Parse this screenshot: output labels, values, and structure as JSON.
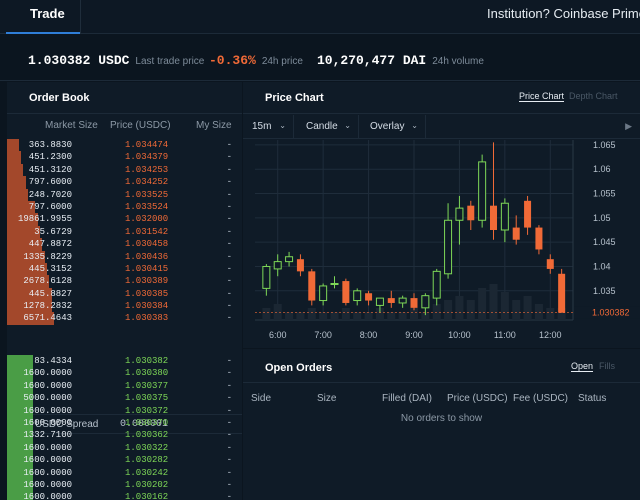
{
  "nav": {
    "tab_trade": "Trade",
    "institution": "Institution? Coinbase Prime"
  },
  "ticker": {
    "last_price": "1.030382 USDC",
    "last_price_label": "Last trade price",
    "change": "-0.36%",
    "change_label": "24h price",
    "volume": "10,270,477 DAI",
    "volume_label": "24h volume"
  },
  "order_book": {
    "title": "Order Book",
    "col_market_size": "Market Size",
    "col_price": "Price (USDC)",
    "col_my_size": "My Size",
    "asks": [
      {
        "size": "363.8830",
        "price": "1.034474",
        "my": "-",
        "depth": 0.05
      },
      {
        "size": "451.2300",
        "price": "1.034379",
        "my": "-",
        "depth": 0.06
      },
      {
        "size": "451.3120",
        "price": "1.034253",
        "my": "-",
        "depth": 0.07
      },
      {
        "size": "797.6000",
        "price": "1.034252",
        "my": "-",
        "depth": 0.08
      },
      {
        "size": "248.7020",
        "price": "1.033525",
        "my": "-",
        "depth": 0.09
      },
      {
        "size": "797.6000",
        "price": "1.033524",
        "my": "-",
        "depth": 0.12
      },
      {
        "size": "19861.9955",
        "price": "1.032000",
        "my": "-",
        "depth": 0.13
      },
      {
        "size": "35.6729",
        "price": "1.031542",
        "my": "-",
        "depth": 0.14
      },
      {
        "size": "447.8872",
        "price": "1.030458",
        "my": "-",
        "depth": 0.15
      },
      {
        "size": "1335.8229",
        "price": "1.030436",
        "my": "-",
        "depth": 0.16
      },
      {
        "size": "445.3152",
        "price": "1.030415",
        "my": "-",
        "depth": 0.17
      },
      {
        "size": "2678.6128",
        "price": "1.030389",
        "my": "-",
        "depth": 0.18
      },
      {
        "size": "445.8827",
        "price": "1.030385",
        "my": "-",
        "depth": 0.19
      },
      {
        "size": "1278.2832",
        "price": "1.030384",
        "my": "-",
        "depth": 0.19
      },
      {
        "size": "6571.4643",
        "price": "1.030383",
        "my": "-",
        "depth": 0.2
      }
    ],
    "spread_label": "USDC Spread",
    "spread_value": "0.000001",
    "bids": [
      {
        "size": "83.4334",
        "price": "1.030382",
        "my": "-",
        "depth": 0.11
      },
      {
        "size": "1600.0000",
        "price": "1.030380",
        "my": "-",
        "depth": 0.11
      },
      {
        "size": "1600.0000",
        "price": "1.030377",
        "my": "-",
        "depth": 0.11
      },
      {
        "size": "5000.0000",
        "price": "1.030375",
        "my": "-",
        "depth": 0.11
      },
      {
        "size": "1600.0000",
        "price": "1.030372",
        "my": "-",
        "depth": 0.11
      },
      {
        "size": "1600.0000",
        "price": "1.030370",
        "my": "-",
        "depth": 0.11
      },
      {
        "size": "1332.7100",
        "price": "1.030362",
        "my": "-",
        "depth": 0.11
      },
      {
        "size": "1600.0000",
        "price": "1.030322",
        "my": "-",
        "depth": 0.11
      },
      {
        "size": "1600.0000",
        "price": "1.030282",
        "my": "-",
        "depth": 0.11
      },
      {
        "size": "1600.0000",
        "price": "1.030242",
        "my": "-",
        "depth": 0.11
      },
      {
        "size": "1600.0000",
        "price": "1.030202",
        "my": "-",
        "depth": 0.11
      },
      {
        "size": "1600.0000",
        "price": "1.030162",
        "my": "-",
        "depth": 0.11
      }
    ]
  },
  "price_chart": {
    "title": "Price Chart",
    "toggle_price": "Price Chart",
    "toggle_depth": "Depth Chart",
    "interval": "15m",
    "chart_style": "Candle",
    "overlay": "Overlay",
    "current_price_label": "1.030382"
  },
  "chart_data": {
    "type": "candlestick",
    "x_ticks": [
      "6:00",
      "7:00",
      "8:00",
      "9:00",
      "10:00",
      "11:00",
      "12:00"
    ],
    "y_ticks": [
      1.035,
      1.04,
      1.045,
      1.05,
      1.055,
      1.06,
      1.065
    ],
    "ylim": [
      1.029,
      1.066
    ],
    "grid": true,
    "up_color": "#7ed857",
    "down_color": "#f16a37",
    "candles": [
      {
        "t": "5:45",
        "o": 1.0355,
        "h": 1.0405,
        "l": 1.034,
        "c": 1.04
      },
      {
        "t": "6:00",
        "o": 1.0395,
        "h": 1.0425,
        "l": 1.038,
        "c": 1.041
      },
      {
        "t": "6:15",
        "o": 1.041,
        "h": 1.043,
        "l": 1.04,
        "c": 1.042
      },
      {
        "t": "6:30",
        "o": 1.0415,
        "h": 1.0425,
        "l": 1.038,
        "c": 1.039
      },
      {
        "t": "6:45",
        "o": 1.039,
        "h": 1.0395,
        "l": 1.032,
        "c": 1.033
      },
      {
        "t": "7:00",
        "o": 1.033,
        "h": 1.0365,
        "l": 1.032,
        "c": 1.036
      },
      {
        "t": "7:15",
        "o": 1.0365,
        "h": 1.038,
        "l": 1.0355,
        "c": 1.0365
      },
      {
        "t": "7:30",
        "o": 1.037,
        "h": 1.0375,
        "l": 1.032,
        "c": 1.0325
      },
      {
        "t": "7:45",
        "o": 1.033,
        "h": 1.0355,
        "l": 1.032,
        "c": 1.035
      },
      {
        "t": "8:00",
        "o": 1.0345,
        "h": 1.035,
        "l": 1.032,
        "c": 1.033
      },
      {
        "t": "8:15",
        "o": 1.032,
        "h": 1.0335,
        "l": 1.0305,
        "c": 1.0335
      },
      {
        "t": "8:30",
        "o": 1.0335,
        "h": 1.035,
        "l": 1.0315,
        "c": 1.0325
      },
      {
        "t": "8:45",
        "o": 1.0325,
        "h": 1.034,
        "l": 1.0315,
        "c": 1.0335
      },
      {
        "t": "9:00",
        "o": 1.0335,
        "h": 1.0345,
        "l": 1.031,
        "c": 1.0315
      },
      {
        "t": "9:15",
        "o": 1.0315,
        "h": 1.0345,
        "l": 1.03,
        "c": 1.034
      },
      {
        "t": "9:30",
        "o": 1.0335,
        "h": 1.0395,
        "l": 1.032,
        "c": 1.039
      },
      {
        "t": "9:45",
        "o": 1.0385,
        "h": 1.053,
        "l": 1.0375,
        "c": 1.0495
      },
      {
        "t": "10:00",
        "o": 1.0495,
        "h": 1.0545,
        "l": 1.0445,
        "c": 1.052
      },
      {
        "t": "10:15",
        "o": 1.0525,
        "h": 1.0535,
        "l": 1.0475,
        "c": 1.0495
      },
      {
        "t": "10:30",
        "o": 1.0495,
        "h": 1.063,
        "l": 1.048,
        "c": 1.0615
      },
      {
        "t": "10:45",
        "o": 1.0525,
        "h": 1.0655,
        "l": 1.0455,
        "c": 1.0475
      },
      {
        "t": "11:00",
        "o": 1.0475,
        "h": 1.054,
        "l": 1.045,
        "c": 1.053
      },
      {
        "t": "11:15",
        "o": 1.048,
        "h": 1.0505,
        "l": 1.0445,
        "c": 1.0455
      },
      {
        "t": "11:30",
        "o": 1.0535,
        "h": 1.0545,
        "l": 1.0465,
        "c": 1.048
      },
      {
        "t": "11:45",
        "o": 1.048,
        "h": 1.0485,
        "l": 1.0425,
        "c": 1.0435
      },
      {
        "t": "12:00",
        "o": 1.0415,
        "h": 1.0425,
        "l": 1.0385,
        "c": 1.0395
      },
      {
        "t": "12:15",
        "o": 1.0385,
        "h": 1.0395,
        "l": 1.0305,
        "c": 1.0305
      }
    ]
  },
  "open_orders": {
    "title": "Open Orders",
    "tab_open": "Open",
    "tab_fills": "Fills",
    "columns": [
      "Side",
      "Size",
      "Filled (DAI)",
      "Price (USDC)",
      "Fee (USDC)",
      "Status"
    ],
    "empty_text": "No orders to show"
  }
}
